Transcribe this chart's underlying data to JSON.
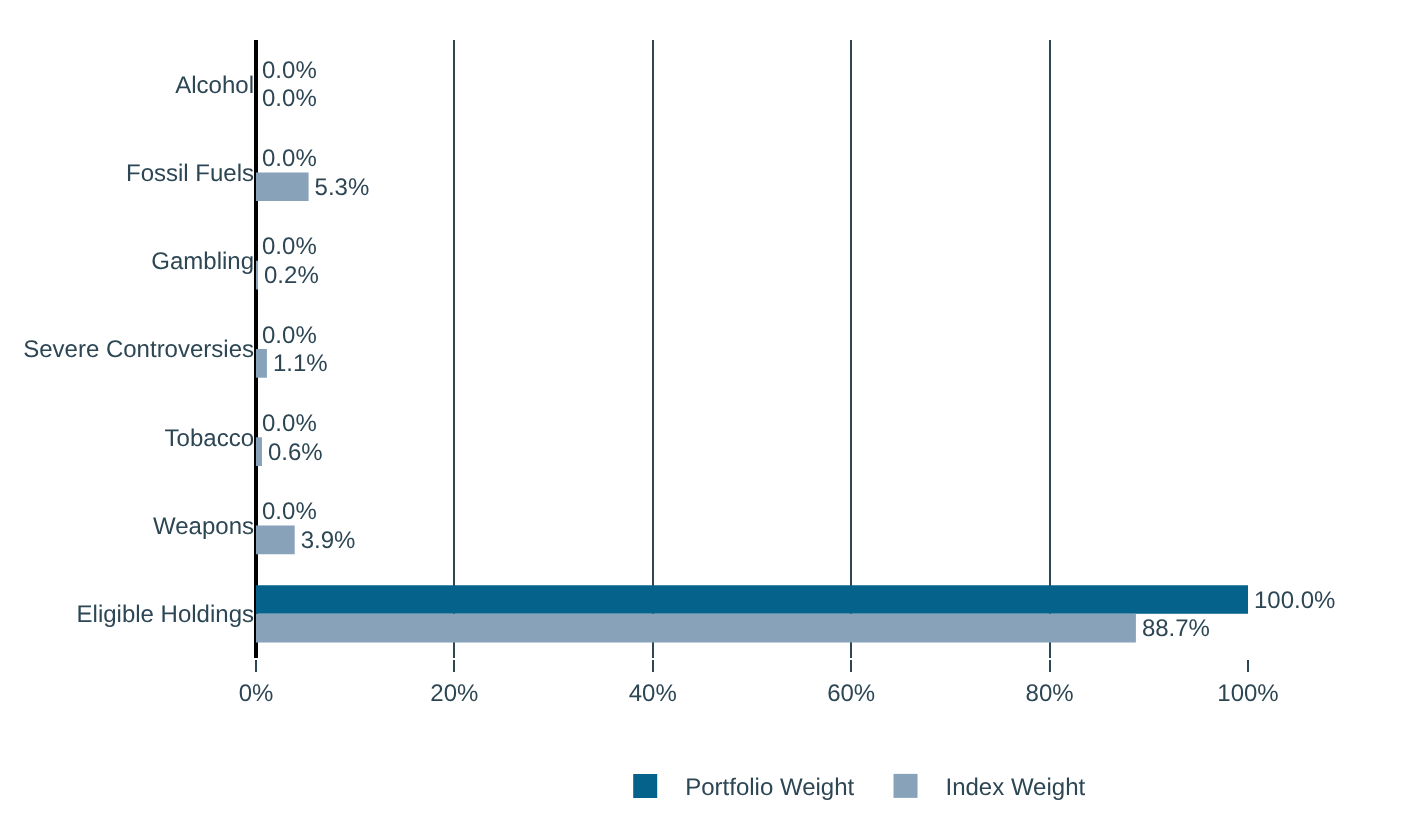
{
  "chart_data": {
    "type": "bar",
    "orientation": "horizontal",
    "categories": [
      "Alcohol",
      "Fossil Fuels",
      "Gambling",
      "Severe Controversies",
      "Tobacco",
      "Weapons",
      "Eligible Holdings"
    ],
    "series": [
      {
        "name": "Portfolio Weight",
        "color": "#05628a",
        "values": [
          0,
          0,
          0,
          0,
          0,
          0,
          100
        ],
        "value_labels": [
          "0.0%",
          "0.0%",
          "0.0%",
          "0.0%",
          "0.0%",
          "0.0%",
          "100.0%"
        ]
      },
      {
        "name": "Index Weight",
        "color": "#87a2b9",
        "values": [
          0,
          5.3,
          0.2,
          1.1,
          0.6,
          3.9,
          88.7
        ],
        "value_labels": [
          "0.0%",
          "5.3%",
          "0.2%",
          "1.1%",
          "0.6%",
          "3.9%",
          "88.7%"
        ]
      }
    ],
    "xlim": [
      0,
      100
    ],
    "xticks": [
      {
        "value": 0,
        "label": "0%"
      },
      {
        "value": 20,
        "label": "20%"
      },
      {
        "value": 40,
        "label": "40%"
      },
      {
        "value": 60,
        "label": "60%"
      },
      {
        "value": 80,
        "label": "80%"
      },
      {
        "value": 100,
        "label": "100%"
      }
    ],
    "grid": "x",
    "legend": "bottom"
  }
}
